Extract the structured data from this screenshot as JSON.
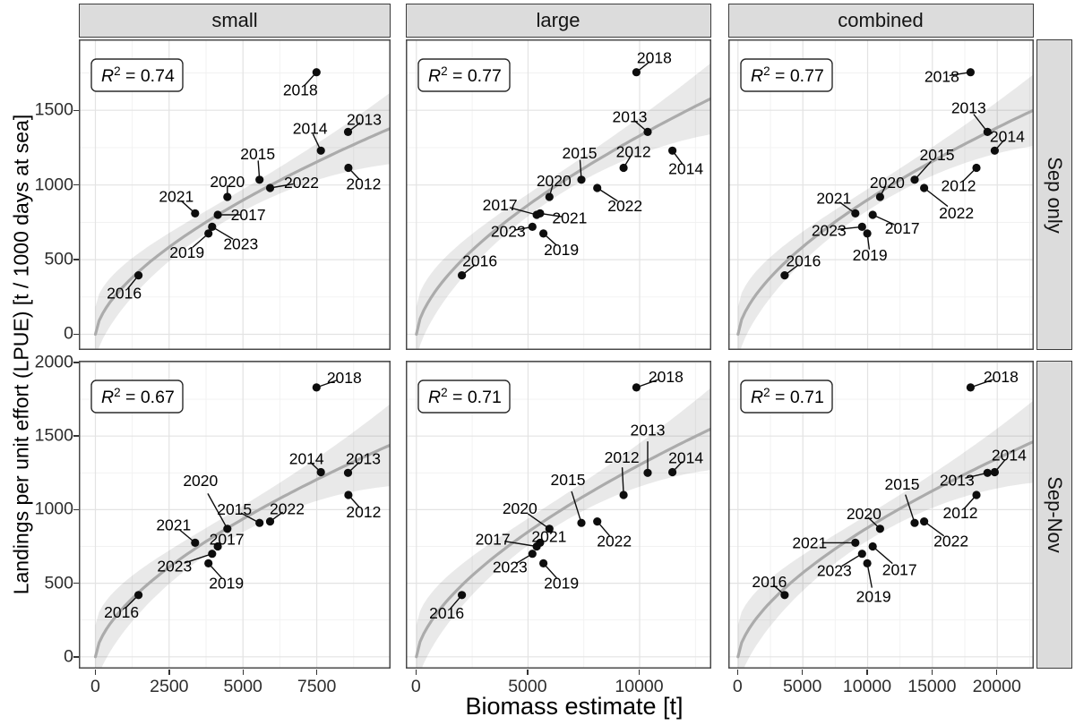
{
  "figure": {
    "x_axis_title": "Biomass estimate [t]",
    "y_axis_title": "Landings per unit effort (LPUE) [t / 1000 days at sea]",
    "col_labels": [
      "small",
      "large",
      "combined"
    ],
    "row_labels": [
      "Sep only",
      "Sep-Nov"
    ],
    "colors": {
      "strip_bg": "#dcdcdc",
      "strip_border": "#3c3c3c",
      "panel_border": "#4a4a4a",
      "grid_major": "#e3e3e3",
      "grid_minor": "#f1f1f1",
      "smooth_line": "#ababab",
      "ribbon": "rgba(0,0,0,0.085)",
      "point": "#0d0d0d",
      "tick_text": "#2d2d2d",
      "label_text": "#000000"
    }
  },
  "chart_data": {
    "type": "scatter",
    "title": "",
    "xlabel": "Biomass estimate [t]",
    "ylabel": "Landings per unit effort (LPUE) [t / 1000 days at sea]",
    "facet_cols": [
      "small",
      "large",
      "combined"
    ],
    "facet_rows": [
      "Sep only",
      "Sep-Nov"
    ],
    "years": [
      "2012",
      "2013",
      "2014",
      "2015",
      "2016",
      "2017",
      "2018",
      "2019",
      "2020",
      "2021",
      "2022",
      "2023"
    ],
    "biomass_by_size": {
      "small": {
        "2012": 8570,
        "2013": 8560,
        "2014": 7640,
        "2015": 5560,
        "2016": 1460,
        "2017": 4145,
        "2018": 7490,
        "2019": 3830,
        "2020": 4470,
        "2021": 3380,
        "2022": 5920,
        "2023": 3955
      },
      "large": {
        "2012": 9280,
        "2013": 10360,
        "2014": 11470,
        "2015": 7390,
        "2016": 2040,
        "2017": 5390,
        "2018": 9855,
        "2019": 5690,
        "2020": 5960,
        "2021": 5540,
        "2022": 8100,
        "2023": 5195
      },
      "combined": {
        "2012": 18400,
        "2013": 19250,
        "2014": 19805,
        "2015": 13625,
        "2016": 3600,
        "2017": 10395,
        "2018": 17940,
        "2019": 9975,
        "2020": 10960,
        "2021": 9050,
        "2022": 14360,
        "2023": 9570
      }
    },
    "lpue_by_period": {
      "Sep only": {
        "2012": 1115,
        "2013": 1355,
        "2014": 1230,
        "2015": 1035,
        "2016": 395,
        "2017": 800,
        "2018": 1755,
        "2019": 675,
        "2020": 920,
        "2021": 810,
        "2022": 980,
        "2023": 720
      },
      "Sep-Nov": {
        "2012": 1100,
        "2013": 1250,
        "2014": 1255,
        "2015": 910,
        "2016": 420,
        "2017": 750,
        "2018": 1830,
        "2019": 635,
        "2020": 870,
        "2021": 775,
        "2022": 920,
        "2023": 700
      }
    },
    "panels": [
      {
        "col": "small",
        "row": "Sep only",
        "r2": "0.74",
        "xlim": [
          -560,
          10000
        ],
        "xticks": [
          0,
          2500,
          5000,
          7500
        ],
        "ylim": [
          -105,
          1975
        ],
        "yticks": [
          0,
          500,
          1000,
          1500
        ],
        "curve": {
          "x_ref": 10000,
          "y_ref": 1380,
          "exp": 0.62,
          "band_mid": 72,
          "band_edge": 240
        },
        "label_offsets": {
          "2012": [
            17,
            18
          ],
          "2013": [
            18,
            -14
          ],
          "2014": [
            -12,
            -25
          ],
          "2015": [
            -2,
            -29
          ],
          "2016": [
            -16,
            20
          ],
          "2017": [
            34,
            0
          ],
          "2018": [
            -18,
            20
          ],
          "2019": [
            -24,
            21
          ],
          "2020": [
            0,
            -17
          ],
          "2021": [
            -21,
            -19
          ],
          "2022": [
            35,
            -6
          ],
          "2023": [
            32,
            19
          ]
        }
      },
      {
        "col": "large",
        "row": "Sep only",
        "r2": "0.77",
        "xlim": [
          -474,
          13210
        ],
        "xticks": [
          0,
          5000,
          10000
        ],
        "ylim": [
          -105,
          1975
        ],
        "yticks": [
          0,
          500,
          1000,
          1500
        ],
        "curve": {
          "x_ref": 13210,
          "y_ref": 1580,
          "exp": 0.62,
          "band_mid": 72,
          "band_edge": 240
        },
        "label_offsets": {
          "2012": [
            11,
            -18
          ],
          "2013": [
            -20,
            -17
          ],
          "2014": [
            15,
            20
          ],
          "2015": [
            -2,
            -30
          ],
          "2016": [
            20,
            -16
          ],
          "2017": [
            -41,
            -11
          ],
          "2018": [
            20,
            -16
          ],
          "2019": [
            20,
            18
          ],
          "2020": [
            5,
            -18
          ],
          "2021": [
            33,
            5
          ],
          "2022": [
            31,
            20
          ],
          "2023": [
            -27,
            5
          ]
        }
      },
      {
        "col": "combined",
        "row": "Sep only",
        "r2": "0.77",
        "xlim": [
          -747,
          22820
        ],
        "xticks": [
          0,
          5000,
          10000,
          15000,
          20000
        ],
        "ylim": [
          -105,
          1975
        ],
        "yticks": [
          0,
          500,
          1000,
          1500
        ],
        "curve": {
          "x_ref": 22820,
          "y_ref": 1502,
          "exp": 0.62,
          "band_mid": 72,
          "band_edge": 240
        },
        "label_offsets": {
          "2012": [
            -20,
            20
          ],
          "2013": [
            -21,
            -27
          ],
          "2014": [
            14,
            -16
          ],
          "2015": [
            25,
            -28
          ],
          "2016": [
            21,
            -16
          ],
          "2017": [
            33,
            15
          ],
          "2018": [
            -32,
            5
          ],
          "2019": [
            3,
            24
          ],
          "2020": [
            8,
            -16
          ],
          "2021": [
            -24,
            -17
          ],
          "2022": [
            36,
            28
          ],
          "2023": [
            -37,
            4
          ]
        }
      },
      {
        "col": "small",
        "row": "Sep-Nov",
        "r2": "0.67",
        "xlim": [
          -560,
          10000
        ],
        "xticks": [
          0,
          2500,
          5000,
          7500
        ],
        "ylim": [
          -80,
          2012
        ],
        "yticks": [
          0,
          500,
          1000,
          1500,
          2000
        ],
        "curve": {
          "x_ref": 10000,
          "y_ref": 1440,
          "exp": 0.62,
          "band_mid": 88,
          "band_edge": 280
        },
        "label_offsets": {
          "2012": [
            17,
            19
          ],
          "2013": [
            17,
            -16
          ],
          "2014": [
            -16,
            -15
          ],
          "2015": [
            -28,
            -15
          ],
          "2016": [
            -19,
            19
          ],
          "2017": [
            10,
            -8
          ],
          "2018": [
            31,
            -11
          ],
          "2019": [
            20,
            22
          ],
          "2020": [
            -30,
            -54
          ],
          "2021": [
            -24,
            -20
          ],
          "2022": [
            19,
            -14
          ],
          "2023": [
            -42,
            14
          ]
        }
      },
      {
        "col": "large",
        "row": "Sep-Nov",
        "r2": "0.71",
        "xlim": [
          -474,
          13210
        ],
        "xticks": [
          0,
          5000,
          10000
        ],
        "ylim": [
          -80,
          2012
        ],
        "yticks": [
          0,
          500,
          1000,
          1500,
          2000
        ],
        "curve": {
          "x_ref": 13210,
          "y_ref": 1550,
          "exp": 0.62,
          "band_mid": 88,
          "band_edge": 280
        },
        "label_offsets": {
          "2012": [
            -2,
            -42
          ],
          "2013": [
            0,
            -48
          ],
          "2014": [
            15,
            -16
          ],
          "2015": [
            -15,
            -48
          ],
          "2016": [
            -17,
            20
          ],
          "2017": [
            -49,
            -8
          ],
          "2018": [
            33,
            -12
          ],
          "2019": [
            20,
            22
          ],
          "2020": [
            -33,
            -23
          ],
          "2021": [
            10,
            -7
          ],
          "2022": [
            19,
            22
          ],
          "2023": [
            -25,
            15
          ]
        }
      },
      {
        "col": "combined",
        "row": "Sep-Nov",
        "r2": "0.71",
        "xlim": [
          -747,
          22820
        ],
        "xticks": [
          0,
          5000,
          10000,
          15000,
          20000
        ],
        "ylim": [
          -80,
          2012
        ],
        "yticks": [
          0,
          500,
          1000,
          1500,
          2000
        ],
        "curve": {
          "x_ref": 22820,
          "y_ref": 1463,
          "exp": 0.62,
          "band_mid": 88,
          "band_edge": 280
        },
        "label_offsets": {
          "2012": [
            -18,
            20
          ],
          "2013": [
            -34,
            8
          ],
          "2014": [
            16,
            -19
          ],
          "2015": [
            -14,
            -43
          ],
          "2016": [
            -17,
            -15
          ],
          "2017": [
            30,
            26
          ],
          "2018": [
            34,
            -12
          ],
          "2019": [
            7,
            37
          ],
          "2020": [
            -18,
            -17
          ],
          "2021": [
            -51,
            0
          ],
          "2022": [
            30,
            22
          ],
          "2023": [
            -31,
            19
          ]
        }
      }
    ]
  }
}
